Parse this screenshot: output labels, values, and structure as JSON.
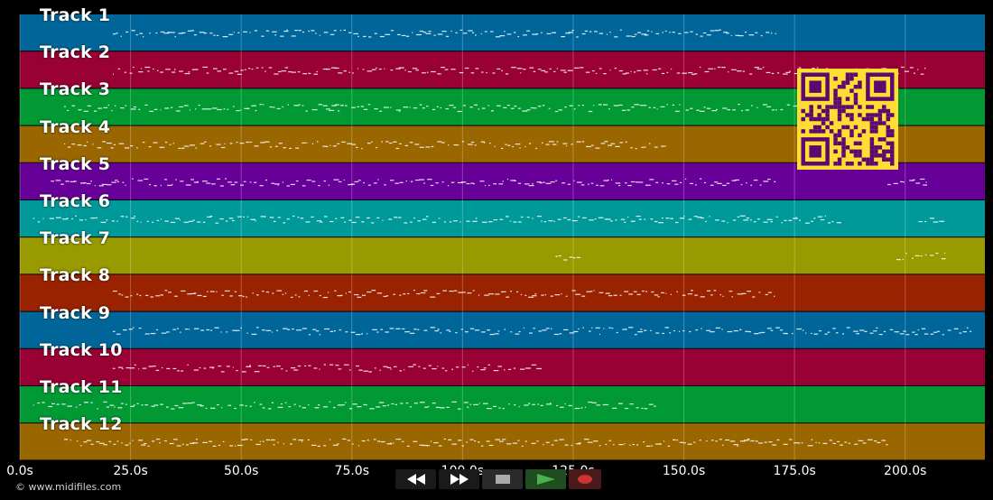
{
  "tracks": [
    {
      "label": "Track 1",
      "color": "#006699"
    },
    {
      "label": "Track 2",
      "color": "#990033"
    },
    {
      "label": "Track 3",
      "color": "#009933"
    },
    {
      "label": "Track 4",
      "color": "#996600"
    },
    {
      "label": "Track 5",
      "color": "#660099"
    },
    {
      "label": "Track 6",
      "color": "#009999"
    },
    {
      "label": "Track 7",
      "color": "#999900"
    },
    {
      "label": "Track 8",
      "color": "#992200"
    },
    {
      "label": "Track 9",
      "color": "#006699"
    },
    {
      "label": "Track 10",
      "color": "#990033"
    },
    {
      "label": "Track 11",
      "color": "#009933"
    },
    {
      "label": "Track 12",
      "color": "#996600"
    }
  ],
  "time_axis": {
    "ticks": [
      "0.0s",
      "25.0s",
      "50.0s",
      "75.0s",
      "100.0s",
      "125.0s",
      "150.0s",
      "175.0s",
      "200.0s"
    ],
    "step_seconds": 25,
    "max_seconds": 218
  },
  "transport": {
    "rewind": "rewind-icon",
    "fast_forward": "fast-forward-icon",
    "stop": "stop-icon",
    "play": "play-icon",
    "record": "record-icon"
  },
  "copyright": "© www.midifiles.com",
  "qr_code": {
    "color": "#ffdd33",
    "dark": "#5a0a6e"
  }
}
